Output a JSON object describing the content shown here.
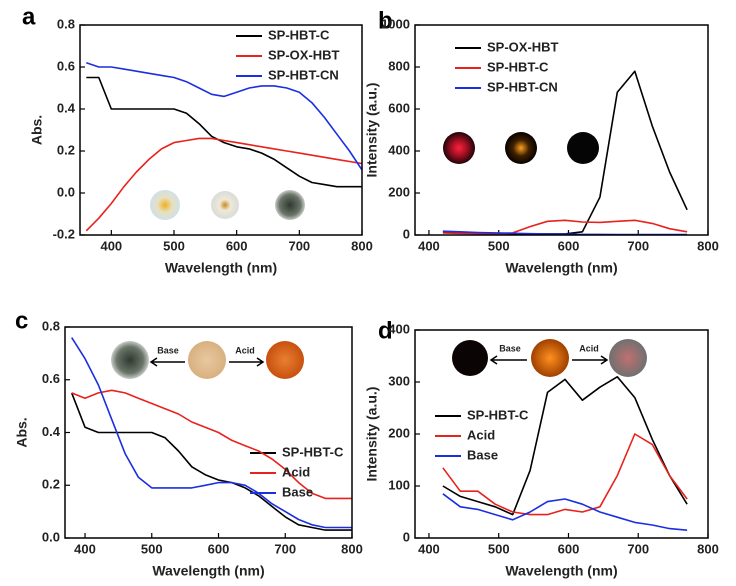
{
  "chart_data": [
    {
      "type": "line",
      "panel_label": "a",
      "x_label": "Wavelength (nm)",
      "y_label": "Abs.",
      "x": [
        360,
        380,
        400,
        420,
        440,
        460,
        480,
        500,
        520,
        540,
        560,
        580,
        600,
        620,
        640,
        660,
        680,
        700,
        720,
        740,
        760,
        780,
        800
      ],
      "series": [
        {
          "name": "SP-HBT-C",
          "color": "#000000",
          "values": [
            0.55,
            0.55,
            0.4,
            0.4,
            0.4,
            0.4,
            0.4,
            0.4,
            0.38,
            0.33,
            0.27,
            0.24,
            0.22,
            0.21,
            0.19,
            0.16,
            0.12,
            0.08,
            0.05,
            0.04,
            0.03,
            0.03,
            0.03
          ]
        },
        {
          "name": "SP-OX-HBT",
          "color": "#e8221c",
          "values": [
            -0.18,
            -0.12,
            -0.05,
            0.03,
            0.1,
            0.16,
            0.21,
            0.24,
            0.25,
            0.26,
            0.26,
            0.25,
            0.24,
            0.23,
            0.22,
            0.21,
            0.2,
            0.19,
            0.18,
            0.17,
            0.16,
            0.15,
            0.14
          ]
        },
        {
          "name": "SP-HBT-CN",
          "color": "#1a2fe0",
          "values": [
            0.62,
            0.6,
            0.6,
            0.59,
            0.58,
            0.57,
            0.56,
            0.55,
            0.53,
            0.5,
            0.47,
            0.46,
            0.48,
            0.5,
            0.51,
            0.51,
            0.5,
            0.48,
            0.43,
            0.36,
            0.28,
            0.2,
            0.11
          ]
        }
      ],
      "xlim": [
        350,
        800
      ],
      "xticks": [
        400,
        500,
        600,
        700,
        800
      ],
      "ylim": [
        -0.2,
        0.8
      ],
      "yticks": [
        -0.2,
        {
          "value": 0,
          "label": "0.0"
        },
        0.2,
        0.4,
        0.6,
        0.8
      ]
    },
    {
      "type": "line",
      "panel_label": "b",
      "x_label": "Wavelength (nm)",
      "y_label": "Intensity (a.u.)",
      "x": [
        420,
        445,
        470,
        495,
        520,
        545,
        570,
        595,
        620,
        645,
        670,
        695,
        720,
        745,
        770
      ],
      "series": [
        {
          "name": "SP-OX-HBT",
          "color": "#000000",
          "values": [
            15,
            12,
            10,
            8,
            6,
            5,
            5,
            5,
            15,
            180,
            680,
            780,
            520,
            300,
            120
          ]
        },
        {
          "name": "SP-HBT-C",
          "color": "#e8221c",
          "values": [
            10,
            8,
            6,
            5,
            10,
            40,
            65,
            70,
            62,
            60,
            65,
            70,
            55,
            30,
            15
          ]
        },
        {
          "name": "SP-HBT-CN",
          "color": "#1a2fe0",
          "values": [
            18,
            15,
            12,
            10,
            8,
            6,
            5,
            4,
            3,
            3,
            2,
            2,
            2,
            2,
            2
          ]
        }
      ],
      "xlim": [
        380,
        800
      ],
      "xticks": [
        400,
        500,
        600,
        700,
        800
      ],
      "ylim": [
        0,
        1000
      ],
      "yticks": [
        0,
        200,
        400,
        600,
        800,
        1000
      ]
    },
    {
      "type": "line",
      "panel_label": "c",
      "x_label": "Wavelength (nm)",
      "y_label": "Abs.",
      "annotations": [
        "Base",
        "Acid"
      ],
      "x": [
        380,
        400,
        420,
        440,
        460,
        480,
        500,
        520,
        540,
        560,
        580,
        600,
        620,
        640,
        660,
        680,
        700,
        720,
        740,
        760,
        780,
        800
      ],
      "series": [
        {
          "name": "SP-HBT-C",
          "color": "#000000",
          "values": [
            0.55,
            0.42,
            0.4,
            0.4,
            0.4,
            0.4,
            0.4,
            0.38,
            0.33,
            0.27,
            0.24,
            0.22,
            0.21,
            0.19,
            0.16,
            0.12,
            0.08,
            0.05,
            0.04,
            0.03,
            0.03,
            0.03
          ]
        },
        {
          "name": "Acid",
          "color": "#e8221c",
          "values": [
            0.55,
            0.53,
            0.55,
            0.56,
            0.55,
            0.53,
            0.51,
            0.49,
            0.47,
            0.44,
            0.42,
            0.4,
            0.37,
            0.35,
            0.33,
            0.3,
            0.26,
            0.21,
            0.17,
            0.15,
            0.15,
            0.15
          ]
        },
        {
          "name": "Base",
          "color": "#1a2fe0",
          "values": [
            0.76,
            0.68,
            0.58,
            0.45,
            0.32,
            0.23,
            0.19,
            0.19,
            0.19,
            0.19,
            0.2,
            0.21,
            0.21,
            0.2,
            0.17,
            0.13,
            0.1,
            0.07,
            0.05,
            0.04,
            0.04,
            0.04
          ]
        }
      ],
      "xlim": [
        370,
        800
      ],
      "xticks": [
        400,
        500,
        600,
        700,
        800
      ],
      "ylim": [
        0,
        0.8
      ],
      "yticks": [
        {
          "value": 0,
          "label": "0.0"
        },
        0.2,
        0.4,
        0.6,
        0.8
      ]
    },
    {
      "type": "line",
      "panel_label": "d",
      "x_label": "Wavelength (nm)",
      "y_label": "Intensity (a.u.)",
      "annotations": [
        "Base",
        "Acid"
      ],
      "x": [
        420,
        445,
        470,
        495,
        520,
        545,
        570,
        595,
        620,
        645,
        670,
        695,
        720,
        745,
        770
      ],
      "series": [
        {
          "name": "SP-HBT-C",
          "color": "#000000",
          "values": [
            100,
            80,
            70,
            60,
            45,
            130,
            280,
            305,
            265,
            290,
            310,
            270,
            190,
            120,
            65
          ]
        },
        {
          "name": "Acid",
          "color": "#e8221c",
          "values": [
            135,
            90,
            90,
            65,
            50,
            45,
            45,
            55,
            50,
            60,
            120,
            200,
            180,
            120,
            75
          ]
        },
        {
          "name": "Base",
          "color": "#1a2fe0",
          "values": [
            85,
            60,
            55,
            45,
            35,
            50,
            70,
            75,
            65,
            50,
            40,
            30,
            25,
            18,
            15
          ]
        }
      ],
      "xlim": [
        380,
        800
      ],
      "xticks": [
        400,
        500,
        600,
        700,
        800
      ],
      "ylim": [
        0,
        400
      ],
      "yticks": [
        0,
        100,
        200,
        300,
        400
      ]
    }
  ]
}
